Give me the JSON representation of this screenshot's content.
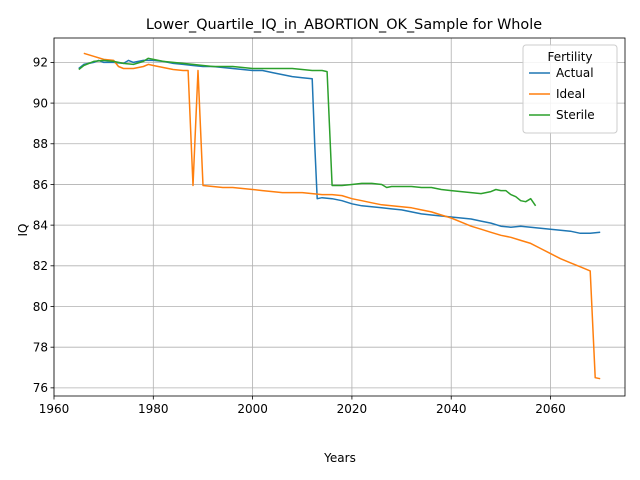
{
  "chart_data": {
    "type": "line",
    "title": "Lower_Quartile_IQ_in_ABORTION_OK_Sample for Whole",
    "xlabel": "Years",
    "ylabel": "IQ",
    "xlim": [
      1960,
      2075
    ],
    "ylim": [
      75.6,
      93.2
    ],
    "xticks": [
      1960,
      1980,
      2000,
      2020,
      2040,
      2060
    ],
    "yticks": [
      76,
      78,
      80,
      82,
      84,
      86,
      88,
      90,
      92
    ],
    "grid": true,
    "legend": {
      "title": "Fertility",
      "placement": "top-right"
    },
    "series": [
      {
        "name": "Actual",
        "color": "#1f77b4",
        "x": [
          1965,
          1966,
          1968,
          1969,
          1970,
          1972,
          1974,
          1975,
          1976,
          1978,
          1980,
          1982,
          1984,
          1986,
          1988,
          1990,
          1992,
          1994,
          1996,
          1998,
          2000,
          2002,
          2004,
          2005,
          2006,
          2008,
          2010,
          2012,
          2012.5,
          2013,
          2014,
          2016,
          2018,
          2020,
          2022,
          2024,
          2026,
          2028,
          2030,
          2032,
          2034,
          2036,
          2038,
          2040,
          2042,
          2044,
          2046,
          2048,
          2050,
          2052,
          2054,
          2056,
          2058,
          2060,
          2062,
          2064,
          2066,
          2068,
          2070
        ],
        "y": [
          91.7,
          91.9,
          92.0,
          92.1,
          92.0,
          92.0,
          91.95,
          92.1,
          92.0,
          92.1,
          92.1,
          92.05,
          91.95,
          91.9,
          91.85,
          91.8,
          91.8,
          91.75,
          91.7,
          91.65,
          91.6,
          91.6,
          91.5,
          91.45,
          91.4,
          91.3,
          91.25,
          91.2,
          88.0,
          85.3,
          85.35,
          85.3,
          85.2,
          85.05,
          84.95,
          84.9,
          84.85,
          84.8,
          84.75,
          84.65,
          84.55,
          84.5,
          84.45,
          84.4,
          84.35,
          84.3,
          84.2,
          84.1,
          83.95,
          83.9,
          83.95,
          83.9,
          83.85,
          83.8,
          83.75,
          83.7,
          83.6,
          83.6,
          83.65
        ]
      },
      {
        "name": "Ideal",
        "color": "#ff7f0e",
        "x": [
          1966,
          1968,
          1970,
          1972,
          1973,
          1974,
          1976,
          1978,
          1979,
          1980,
          1982,
          1984,
          1986,
          1987,
          1988,
          1989,
          1990,
          1992,
          1994,
          1996,
          1998,
          2000,
          2002,
          2004,
          2006,
          2008,
          2010,
          2012,
          2014,
          2016,
          2018,
          2020,
          2022,
          2024,
          2026,
          2028,
          2030,
          2032,
          2034,
          2036,
          2038,
          2040,
          2042,
          2044,
          2046,
          2048,
          2050,
          2052,
          2054,
          2056,
          2058,
          2060,
          2062,
          2064,
          2066,
          2068,
          2069,
          2070
        ],
        "y": [
          92.45,
          92.3,
          92.15,
          92.1,
          91.8,
          91.7,
          91.7,
          91.8,
          91.9,
          91.85,
          91.75,
          91.65,
          91.6,
          91.6,
          85.95,
          91.6,
          85.95,
          85.9,
          85.85,
          85.85,
          85.8,
          85.75,
          85.7,
          85.65,
          85.6,
          85.6,
          85.6,
          85.55,
          85.5,
          85.5,
          85.45,
          85.3,
          85.2,
          85.1,
          85.0,
          84.95,
          84.9,
          84.85,
          84.75,
          84.65,
          84.5,
          84.35,
          84.15,
          83.95,
          83.8,
          83.65,
          83.5,
          83.4,
          83.25,
          83.1,
          82.85,
          82.6,
          82.35,
          82.15,
          81.95,
          81.75,
          76.5,
          76.45
        ]
      },
      {
        "name": "Sterile",
        "color": "#2ca02c",
        "x": [
          1965,
          1966,
          1968,
          1970,
          1972,
          1974,
          1976,
          1978,
          1979,
          1980,
          1982,
          1984,
          1986,
          1988,
          1990,
          1992,
          1994,
          1996,
          1998,
          2000,
          2002,
          2004,
          2006,
          2008,
          2010,
          2012,
          2014,
          2015,
          2016,
          2018,
          2020,
          2022,
          2024,
          2026,
          2027,
          2028,
          2030,
          2032,
          2034,
          2036,
          2038,
          2040,
          2042,
          2044,
          2046,
          2048,
          2049,
          2050,
          2051,
          2052,
          2053,
          2054,
          2055,
          2056,
          2057
        ],
        "y": [
          91.65,
          91.85,
          92.05,
          92.1,
          92.05,
          91.95,
          91.9,
          92.05,
          92.2,
          92.15,
          92.05,
          92.0,
          91.95,
          91.9,
          91.85,
          91.8,
          91.8,
          91.8,
          91.75,
          91.7,
          91.7,
          91.7,
          91.7,
          91.7,
          91.65,
          91.6,
          91.6,
          91.55,
          85.95,
          85.95,
          86.0,
          86.05,
          86.05,
          86.0,
          85.85,
          85.9,
          85.9,
          85.9,
          85.85,
          85.85,
          85.75,
          85.7,
          85.65,
          85.6,
          85.55,
          85.65,
          85.75,
          85.7,
          85.7,
          85.5,
          85.4,
          85.2,
          85.15,
          85.3,
          84.95
        ]
      }
    ]
  }
}
